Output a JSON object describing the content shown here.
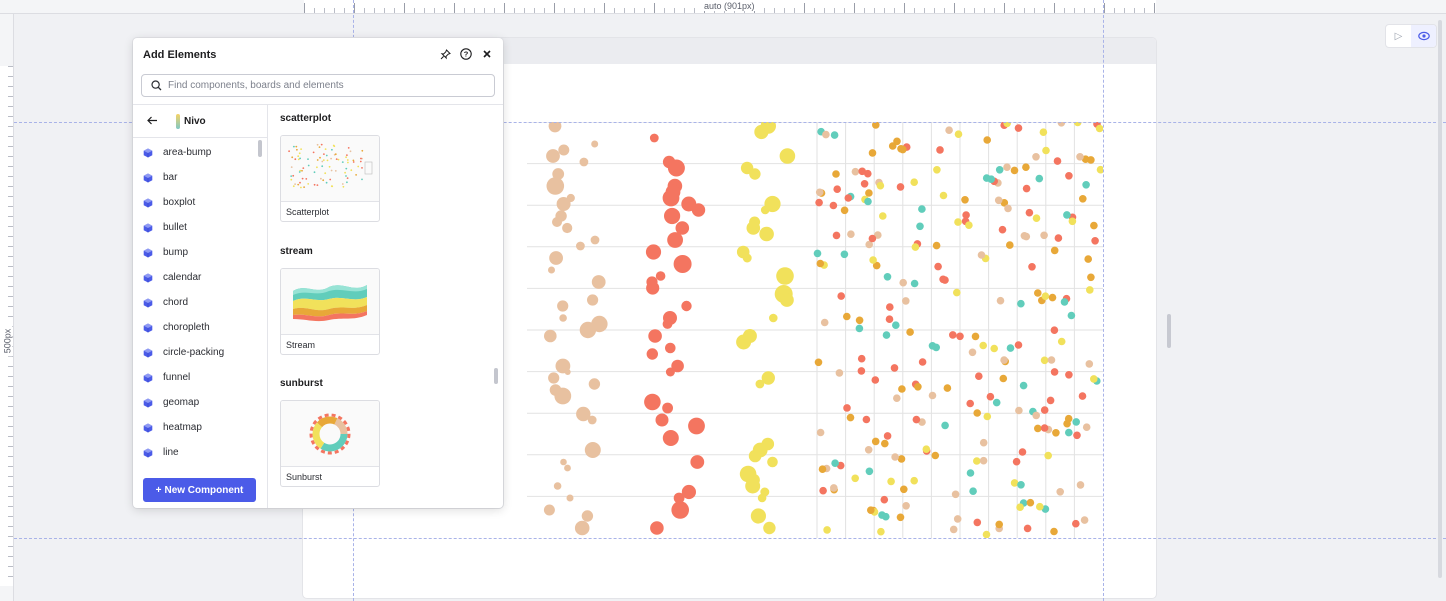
{
  "ruler": {
    "top_label": "auto (901px)",
    "left_label": "500px"
  },
  "toolbar": {
    "play_icon": "play-icon",
    "preview_icon": "eye-icon"
  },
  "panel": {
    "title": "Add Elements",
    "search_placeholder": "Find components, boards and elements",
    "library_name": "Nivo",
    "items": [
      "area-bump",
      "bar",
      "boxplot",
      "bullet",
      "bump",
      "calendar",
      "chord",
      "choropleth",
      "circle-packing",
      "funnel",
      "geomap",
      "heatmap",
      "line"
    ],
    "new_component_label": "New Component",
    "sections": [
      {
        "title": "scatterplot",
        "card_label": "Scatterplot"
      },
      {
        "title": "stream",
        "card_label": "Stream"
      },
      {
        "title": "sunburst",
        "card_label": "Sunburst"
      }
    ]
  },
  "colors": {
    "accent": "#4b5be8",
    "swarm_tan": "#e8c1a0",
    "swarm_red": "#f47560",
    "swarm_yellow": "#f1e15b",
    "teal": "#61cdbb",
    "orange": "#e8a838"
  }
}
